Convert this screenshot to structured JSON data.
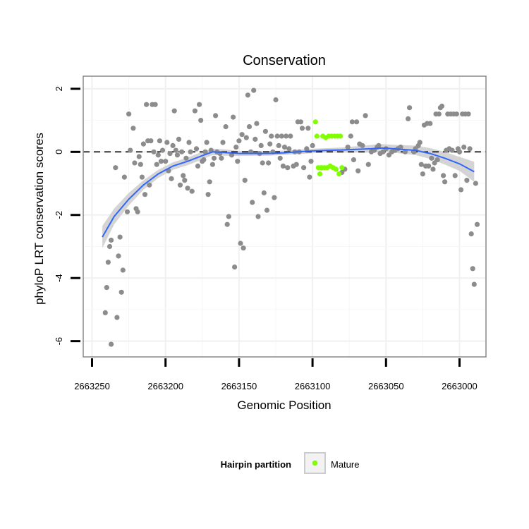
{
  "chart_data": {
    "type": "scatter",
    "title": "Conservation",
    "xlabel": "Genomic Position",
    "ylabel": "phyloP LRT conservation scores",
    "x_reversed": true,
    "xlim": [
      2663256,
      2662982
    ],
    "ylim": [
      -6.5,
      2.4
    ],
    "x_ticks": [
      2663250,
      2663200,
      2663150,
      2663100,
      2663050,
      2663000
    ],
    "x_tick_labels": [
      "2663250",
      "2663200",
      "2663150",
      "2663100",
      "2663050",
      "2663000"
    ],
    "y_ticks": [
      2,
      0,
      -2,
      -4,
      -6
    ],
    "y_tick_labels": [
      "2",
      "0",
      "-2",
      "-4",
      "-6"
    ],
    "reference_line_y": 0,
    "grid": true,
    "colors": {
      "points": "#8c8c8c",
      "mature": "#7fff00",
      "smooth": "#3366ff",
      "ribbon": "#cccccc",
      "frame": "#888888"
    },
    "legend": {
      "title": "Hairpin partition",
      "placement": "bottom",
      "entries": [
        {
          "label": "Mature",
          "color": "#7fff00"
        }
      ]
    },
    "series": [
      {
        "kind": "background points",
        "points": [
          [
            2663241,
            -5.1
          ],
          [
            2663240,
            -4.3
          ],
          [
            2663239,
            -3.5
          ],
          [
            2663238,
            -3.0
          ],
          [
            2663237,
            -6.1
          ],
          [
            2663237,
            -2.8
          ],
          [
            2663234,
            -0.5
          ],
          [
            2663233,
            -5.25
          ],
          [
            2663232,
            -3.3
          ],
          [
            2663231,
            -2.7
          ],
          [
            2663230,
            -4.45
          ],
          [
            2663229,
            -3.75
          ],
          [
            2663228,
            -0.8
          ],
          [
            2663226,
            -1.9
          ],
          [
            2663225,
            1.2
          ],
          [
            2663224,
            0.05
          ],
          [
            2663222,
            0.75
          ],
          [
            2663221,
            -0.35
          ],
          [
            2663220,
            -1.8
          ],
          [
            2663219,
            -1.9
          ],
          [
            2663218,
            -0.15
          ],
          [
            2663217,
            -0.4
          ],
          [
            2663216,
            -0.8
          ],
          [
            2663215,
            0.25
          ],
          [
            2663214,
            -1.35
          ],
          [
            2663213,
            1.5
          ],
          [
            2663212,
            0.35
          ],
          [
            2663211,
            -1.05
          ],
          [
            2663210,
            0.35
          ],
          [
            2663209,
            1.5
          ],
          [
            2663208,
            0.0
          ],
          [
            2663207,
            1.5
          ],
          [
            2663206,
            -0.4
          ],
          [
            2663205,
            -0.1
          ],
          [
            2663204,
            0.35
          ],
          [
            2663203,
            -0.3
          ],
          [
            2663202,
            0.05
          ],
          [
            2663200,
            -0.3
          ],
          [
            2663199,
            0.3
          ],
          [
            2663198,
            -0.6
          ],
          [
            2663197,
            -0.05
          ],
          [
            2663196,
            -0.85
          ],
          [
            2663195,
            0.2
          ],
          [
            2663194,
            1.3
          ],
          [
            2663193,
            0.05
          ],
          [
            2663192,
            -0.1
          ],
          [
            2663191,
            0.4
          ],
          [
            2663190,
            -1.05
          ],
          [
            2663189,
            0.0
          ],
          [
            2663188,
            -0.75
          ],
          [
            2663187,
            -0.9
          ],
          [
            2663186,
            -0.2
          ],
          [
            2663185,
            -1.15
          ],
          [
            2663184,
            0.3
          ],
          [
            2663183,
            0.0
          ],
          [
            2663182,
            -1.25
          ],
          [
            2663180,
            1.3
          ],
          [
            2663179,
            0.1
          ],
          [
            2663178,
            -0.45
          ],
          [
            2663177,
            1.5
          ],
          [
            2663176,
            1.0
          ],
          [
            2663175,
            -0.3
          ],
          [
            2663174,
            -0.25
          ],
          [
            2663173,
            0.0
          ],
          [
            2663172,
            0.3
          ],
          [
            2663171,
            -1.35
          ],
          [
            2663170,
            -0.95
          ],
          [
            2663169,
            0.05
          ],
          [
            2663168,
            -0.4
          ],
          [
            2663167,
            -0.2
          ],
          [
            2663166,
            1.15
          ],
          [
            2663165,
            0.0
          ],
          [
            2663163,
            -0.05
          ],
          [
            2663162,
            -0.2
          ],
          [
            2663161,
            0.3
          ],
          [
            2663159,
            0.8
          ],
          [
            2663158,
            -2.3
          ],
          [
            2663157,
            -2.05
          ],
          [
            2663155,
            -0.1
          ],
          [
            2663154,
            1.1
          ],
          [
            2663153,
            -3.65
          ],
          [
            2663152,
            0.15
          ],
          [
            2663151,
            -0.3
          ],
          [
            2663150,
            0.35
          ],
          [
            2663149,
            -2.9
          ],
          [
            2663148,
            0.55
          ],
          [
            2663147,
            -3.05
          ],
          [
            2663146,
            -0.9
          ],
          [
            2663145,
            0.45
          ],
          [
            2663144,
            1.8
          ],
          [
            2663143,
            0.8
          ],
          [
            2663142,
            0.0
          ],
          [
            2663141,
            -1.6
          ],
          [
            2663140,
            1.95
          ],
          [
            2663139,
            0.4
          ],
          [
            2663138,
            0.9
          ],
          [
            2663137,
            -2.05
          ],
          [
            2663136,
            -0.05
          ],
          [
            2663135,
            0.2
          ],
          [
            2663134,
            -0.35
          ],
          [
            2663133,
            -1.3
          ],
          [
            2663132,
            0.65
          ],
          [
            2663131,
            -1.85
          ],
          [
            2663130,
            -0.35
          ],
          [
            2663129,
            0.25
          ],
          [
            2663128,
            0.5
          ],
          [
            2663127,
            0.0
          ],
          [
            2663126,
            -1.45
          ],
          [
            2663125,
            1.65
          ],
          [
            2663124,
            0.5
          ],
          [
            2663123,
            0.2
          ],
          [
            2663122,
            -0.2
          ],
          [
            2663121,
            0.5
          ],
          [
            2663120,
            -0.45
          ],
          [
            2663119,
            0.15
          ],
          [
            2663118,
            0.5
          ],
          [
            2663117,
            -0.5
          ],
          [
            2663116,
            0.1
          ],
          [
            2663115,
            0.5
          ],
          [
            2663113,
            -0.45
          ],
          [
            2663112,
            0.0
          ],
          [
            2663111,
            -0.4
          ],
          [
            2663110,
            0.95
          ],
          [
            2663109,
            0.0
          ],
          [
            2663108,
            0.95
          ],
          [
            2663107,
            0.75
          ],
          [
            2663106,
            -0.5
          ],
          [
            2663104,
            0.1
          ],
          [
            2663103,
            0.75
          ],
          [
            2663102,
            -0.8
          ],
          [
            2663101,
            -0.3
          ],
          [
            2663100,
            0.2
          ],
          [
            2663080,
            -0.65
          ],
          [
            2663078,
            -0.55
          ],
          [
            2663076,
            0.15
          ],
          [
            2663074,
            0.5
          ],
          [
            2663073,
            0.95
          ],
          [
            2663072,
            -0.25
          ],
          [
            2663070,
            0.95
          ],
          [
            2663069,
            -0.6
          ],
          [
            2663068,
            0.25
          ],
          [
            2663066,
            0.2
          ],
          [
            2663064,
            1.15
          ],
          [
            2663062,
            -0.4
          ],
          [
            2663060,
            0.0
          ],
          [
            2663058,
            0.05
          ],
          [
            2663056,
            0.15
          ],
          [
            2663055,
            0.2
          ],
          [
            2663054,
            -0.05
          ],
          [
            2663052,
            0.0
          ],
          [
            2663050,
            0.1
          ],
          [
            2663048,
            -0.1
          ],
          [
            2663046,
            0.0
          ],
          [
            2663044,
            0.05
          ],
          [
            2663042,
            0.1
          ],
          [
            2663040,
            0.15
          ],
          [
            2663037,
            0.0
          ],
          [
            2663035,
            1.05
          ],
          [
            2663034,
            1.4
          ],
          [
            2663031,
            0.0
          ],
          [
            2663030,
            0.1
          ],
          [
            2663028,
            0.2
          ],
          [
            2663027,
            0.3
          ],
          [
            2663026,
            -0.4
          ],
          [
            2663025,
            -0.7
          ],
          [
            2663024,
            0.85
          ],
          [
            2663023,
            -0.45
          ],
          [
            2663022,
            0.9
          ],
          [
            2663021,
            -0.45
          ],
          [
            2663020,
            0.9
          ],
          [
            2663019,
            -0.2
          ],
          [
            2663018,
            -0.55
          ],
          [
            2663017,
            -0.35
          ],
          [
            2663016,
            1.2
          ],
          [
            2663015,
            -0.25
          ],
          [
            2663014,
            1.2
          ],
          [
            2663013,
            1.4
          ],
          [
            2663012,
            1.45
          ],
          [
            2663011,
            -0.75
          ],
          [
            2663010,
            -0.95
          ],
          [
            2663009,
            0.05
          ],
          [
            2663008,
            1.2
          ],
          [
            2663007,
            0.1
          ],
          [
            2663006,
            1.2
          ],
          [
            2663005,
            0.05
          ],
          [
            2663004,
            1.2
          ],
          [
            2663003,
            -0.75
          ],
          [
            2663002,
            1.2
          ],
          [
            2663001,
            0.1
          ],
          [
            2663000,
            0.0
          ],
          [
            2662999,
            -1.2
          ],
          [
            2662998,
            1.2
          ],
          [
            2662997,
            0.15
          ],
          [
            2662996,
            1.2
          ],
          [
            2662995,
            -0.9
          ],
          [
            2662994,
            1.2
          ],
          [
            2662993,
            0.1
          ],
          [
            2662992,
            -2.6
          ],
          [
            2662991,
            -3.7
          ],
          [
            2662990,
            -4.2
          ],
          [
            2662989,
            -1.0
          ],
          [
            2662988,
            -2.3
          ]
        ]
      },
      {
        "name": "Mature",
        "points": [
          [
            2663098,
            0.95
          ],
          [
            2663097,
            0.5
          ],
          [
            2663096,
            -0.5
          ],
          [
            2663095,
            -0.7
          ],
          [
            2663094,
            -0.5
          ],
          [
            2663093,
            0.5
          ],
          [
            2663092,
            -0.5
          ],
          [
            2663091,
            0.45
          ],
          [
            2663090,
            -0.5
          ],
          [
            2663089,
            0.5
          ],
          [
            2663088,
            -0.45
          ],
          [
            2663087,
            0.5
          ],
          [
            2663086,
            -0.5
          ],
          [
            2663085,
            0.5
          ],
          [
            2663084,
            -0.55
          ],
          [
            2663083,
            0.5
          ],
          [
            2663082,
            -0.7
          ],
          [
            2663081,
            0.5
          ],
          [
            2663080,
            -0.5
          ]
        ]
      }
    ],
    "smooth": {
      "kind": "smoothed trend with confidence band",
      "x": [
        2663243,
        2663235,
        2663225,
        2663215,
        2663205,
        2663195,
        2663185,
        2663175,
        2663168,
        2663160,
        2663150,
        2663140,
        2663130,
        2663120,
        2663110,
        2663100,
        2663090,
        2663080,
        2663070,
        2663060,
        2663055,
        2663050,
        2663040,
        2663030,
        2663020,
        2663010,
        2663000,
        2662990
      ],
      "y": [
        -2.7,
        -2.05,
        -1.5,
        -1.05,
        -0.7,
        -0.45,
        -0.3,
        -0.12,
        0.0,
        -0.02,
        -0.05,
        -0.05,
        -0.05,
        -0.03,
        0.0,
        0.03,
        0.05,
        0.06,
        0.08,
        0.1,
        0.12,
        0.12,
        0.08,
        0.05,
        -0.05,
        -0.2,
        -0.38,
        -0.63
      ],
      "lower": [
        -3.05,
        -2.3,
        -1.7,
        -1.2,
        -0.83,
        -0.57,
        -0.42,
        -0.24,
        -0.1,
        -0.12,
        -0.13,
        -0.12,
        -0.12,
        -0.1,
        -0.07,
        -0.04,
        -0.02,
        -0.02,
        -0.02,
        -0.02,
        -0.01,
        0.0,
        -0.05,
        -0.1,
        -0.22,
        -0.4,
        -0.6,
        -0.95
      ],
      "upper": [
        -2.35,
        -1.8,
        -1.3,
        -0.9,
        -0.57,
        -0.33,
        -0.18,
        0.0,
        0.1,
        0.08,
        0.03,
        0.02,
        0.02,
        0.04,
        0.07,
        0.1,
        0.12,
        0.14,
        0.18,
        0.22,
        0.25,
        0.24,
        0.21,
        0.2,
        0.12,
        0.0,
        -0.16,
        -0.31
      ]
    }
  }
}
